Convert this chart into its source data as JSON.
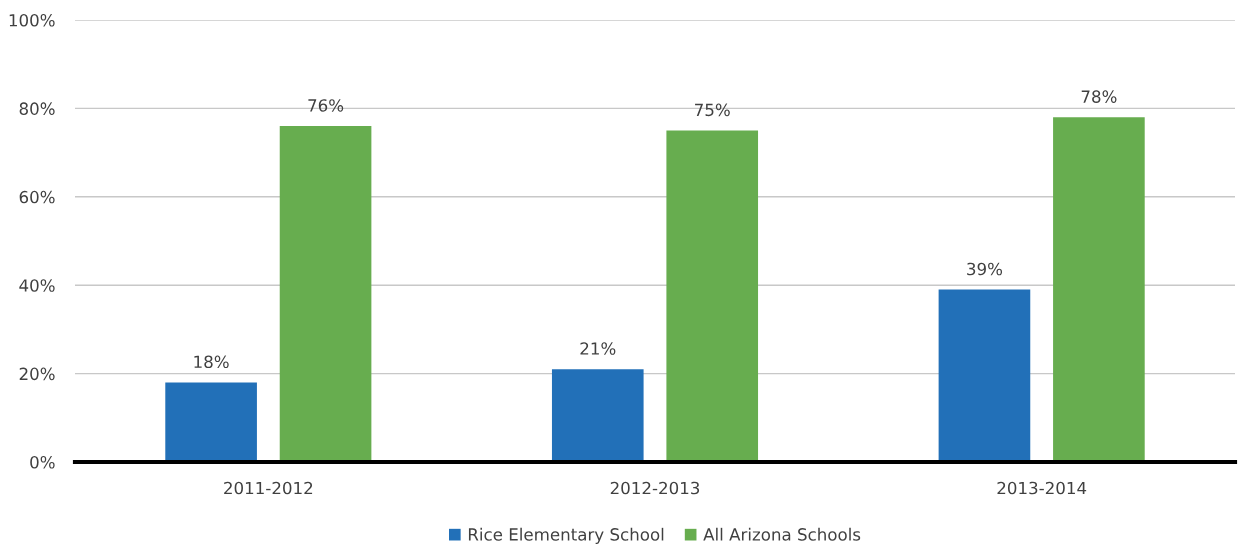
{
  "chart_data": {
    "type": "bar",
    "categories": [
      "2011-2012",
      "2012-2013",
      "2013-2014"
    ],
    "series": [
      {
        "name": "Rice Elementary School",
        "color": "#2270b8",
        "values": [
          18,
          21,
          39
        ],
        "value_labels": [
          "18%",
          "21%",
          "39%"
        ]
      },
      {
        "name": "All Arizona Schools",
        "color": "#67ad4f",
        "values": [
          76,
          75,
          78
        ],
        "value_labels": [
          "76%",
          "75%",
          "78%"
        ]
      }
    ],
    "ylim": [
      0,
      100
    ],
    "yticks": [
      {
        "value": 0,
        "label": "0%"
      },
      {
        "value": 20,
        "label": "20%"
      },
      {
        "value": 40,
        "label": "40%"
      },
      {
        "value": 60,
        "label": "60%"
      },
      {
        "value": 80,
        "label": "80%"
      },
      {
        "value": 100,
        "label": "100%"
      }
    ],
    "grid": "y",
    "legend": "bottom"
  }
}
